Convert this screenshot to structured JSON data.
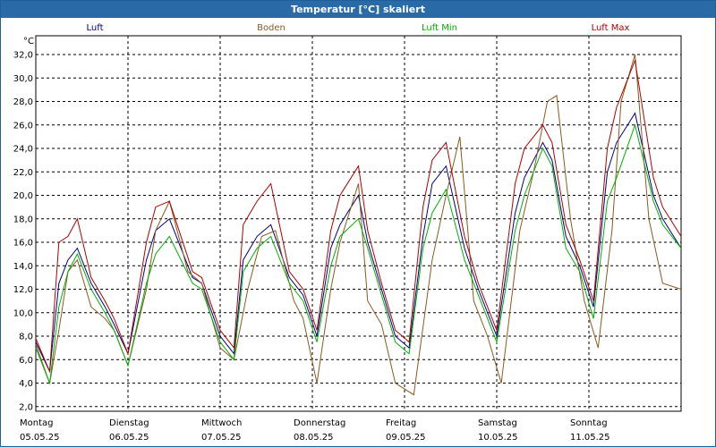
{
  "window": {
    "title": "Temperatur [°C] skaliert"
  },
  "chart_data": {
    "type": "line",
    "title": "Temperatur [°C] skaliert",
    "ylabel": "°C",
    "xlabel": "",
    "ylim": [
      1.6,
      33.6
    ],
    "xlim": [
      0,
      7
    ],
    "yticks": [
      "2,0",
      "4,0",
      "6,0",
      "8,0",
      "10,0",
      "12,0",
      "14,0",
      "16,0",
      "18,0",
      "20,0",
      "22,0",
      "24,0",
      "26,0",
      "28,0",
      "30,0",
      "32,0"
    ],
    "x_labels": [
      {
        "day": "Montag",
        "date": "05.05.25"
      },
      {
        "day": "Dienstag",
        "date": "06.05.25"
      },
      {
        "day": "Mittwoch",
        "date": "07.05.25"
      },
      {
        "day": "Donnerstag",
        "date": "08.05.25"
      },
      {
        "day": "Freitag",
        "date": "09.05.25"
      },
      {
        "day": "Samstag",
        "date": "10.05.25"
      },
      {
        "day": "Sonntag",
        "date": "11.05.25"
      }
    ],
    "grid": true,
    "legend_position": "top",
    "series": [
      {
        "name": "Luft",
        "color": "#000080",
        "x": [
          0,
          0.15,
          0.25,
          0.35,
          0.45,
          0.6,
          0.75,
          0.85,
          1.0,
          1.2,
          1.3,
          1.45,
          1.7,
          1.8,
          2.0,
          2.15,
          2.25,
          2.4,
          2.55,
          2.75,
          2.9,
          3.05,
          3.2,
          3.3,
          3.5,
          3.6,
          3.75,
          3.9,
          4.05,
          4.2,
          4.3,
          4.45,
          4.65,
          4.8,
          5.0,
          5.2,
          5.3,
          5.5,
          5.6,
          5.75,
          5.9,
          6.05,
          6.2,
          6.3,
          6.5,
          6.7,
          6.8,
          7.0
        ],
        "y": [
          7.5,
          5.0,
          12.5,
          14.5,
          15.5,
          12.5,
          10.5,
          9.0,
          6.5,
          14.5,
          17.0,
          18.0,
          13.0,
          12.5,
          8.0,
          6.5,
          14.5,
          16.5,
          17.5,
          13.0,
          11.5,
          8.0,
          15.5,
          17.5,
          20.0,
          16.0,
          12.0,
          8.0,
          7.0,
          16.5,
          21.0,
          22.5,
          15.5,
          12.0,
          8.0,
          18.5,
          21.5,
          24.5,
          23.0,
          16.5,
          14.0,
          10.5,
          22.0,
          24.5,
          27.0,
          20.0,
          18.0,
          15.5
        ]
      },
      {
        "name": "Boden",
        "color": "#8b5a1e",
        "x": [
          0,
          0.15,
          0.25,
          0.35,
          0.45,
          0.6,
          0.75,
          0.85,
          1.0,
          1.2,
          1.3,
          1.45,
          1.65,
          1.8,
          2.0,
          2.15,
          2.3,
          2.45,
          2.6,
          2.8,
          2.9,
          3.05,
          3.2,
          3.3,
          3.5,
          3.6,
          3.75,
          3.9,
          4.1,
          4.3,
          4.45,
          4.6,
          4.75,
          4.9,
          5.05,
          5.25,
          5.4,
          5.55,
          5.65,
          5.8,
          5.95,
          6.1,
          6.25,
          6.35,
          6.5,
          6.65,
          6.8,
          7.0
        ],
        "y": [
          7.3,
          4.0,
          8.5,
          13.5,
          14.5,
          10.5,
          9.5,
          8.5,
          5.5,
          12.0,
          17.0,
          19.5,
          13.5,
          12.5,
          7.0,
          6.0,
          12.0,
          16.5,
          17.0,
          11.0,
          9.5,
          4.0,
          12.0,
          16.0,
          21.0,
          11.0,
          9.0,
          4.0,
          3.0,
          14.5,
          20.0,
          25.0,
          11.0,
          8.0,
          4.0,
          17.0,
          22.0,
          28.0,
          28.5,
          18.0,
          11.0,
          7.0,
          17.0,
          28.0,
          32.0,
          18.0,
          12.5,
          12.0
        ]
      },
      {
        "name": "Luft Min",
        "color": "#00b000",
        "x": [
          0,
          0.15,
          0.25,
          0.35,
          0.45,
          0.6,
          0.75,
          0.85,
          1.0,
          1.2,
          1.3,
          1.45,
          1.7,
          1.8,
          2.0,
          2.15,
          2.25,
          2.4,
          2.55,
          2.75,
          2.9,
          3.05,
          3.2,
          3.3,
          3.5,
          3.6,
          3.75,
          3.9,
          4.05,
          4.2,
          4.3,
          4.45,
          4.65,
          4.8,
          5.0,
          5.2,
          5.3,
          5.5,
          5.6,
          5.75,
          5.9,
          6.05,
          6.2,
          6.3,
          6.5,
          6.7,
          6.8,
          7.0
        ],
        "y": [
          7.0,
          4.0,
          10.5,
          13.5,
          15.0,
          12.0,
          10.0,
          8.5,
          5.5,
          12.5,
          15.0,
          16.5,
          12.5,
          12.0,
          7.5,
          6.0,
          13.5,
          15.5,
          16.5,
          12.5,
          11.0,
          7.5,
          14.0,
          16.5,
          18.0,
          15.5,
          11.5,
          7.5,
          6.5,
          15.5,
          18.5,
          20.5,
          14.5,
          11.5,
          7.5,
          17.0,
          20.0,
          24.0,
          22.5,
          15.5,
          13.5,
          9.5,
          19.5,
          21.5,
          26.0,
          19.5,
          17.5,
          15.5
        ]
      },
      {
        "name": "Luft Max",
        "color": "#b00000",
        "x": [
          0,
          0.15,
          0.25,
          0.35,
          0.45,
          0.6,
          0.75,
          0.85,
          1.0,
          1.2,
          1.3,
          1.45,
          1.7,
          1.8,
          2.0,
          2.15,
          2.25,
          2.4,
          2.55,
          2.75,
          2.9,
          3.05,
          3.2,
          3.3,
          3.5,
          3.6,
          3.75,
          3.9,
          4.05,
          4.2,
          4.3,
          4.45,
          4.65,
          4.8,
          5.0,
          5.2,
          5.3,
          5.5,
          5.6,
          5.75,
          5.9,
          6.05,
          6.2,
          6.3,
          6.5,
          6.7,
          6.8,
          7.0
        ],
        "y": [
          7.8,
          5.0,
          16.0,
          16.5,
          18.0,
          13.0,
          11.0,
          9.5,
          6.5,
          16.0,
          19.0,
          19.5,
          13.5,
          13.0,
          8.5,
          7.0,
          17.5,
          19.5,
          21.0,
          13.5,
          12.0,
          8.5,
          17.0,
          20.0,
          22.5,
          17.0,
          12.5,
          8.5,
          7.5,
          19.0,
          23.0,
          24.5,
          16.5,
          12.5,
          8.5,
          21.0,
          24.0,
          26.0,
          24.5,
          17.5,
          14.5,
          11.0,
          24.0,
          27.5,
          31.5,
          21.5,
          19.0,
          16.5
        ]
      }
    ]
  }
}
